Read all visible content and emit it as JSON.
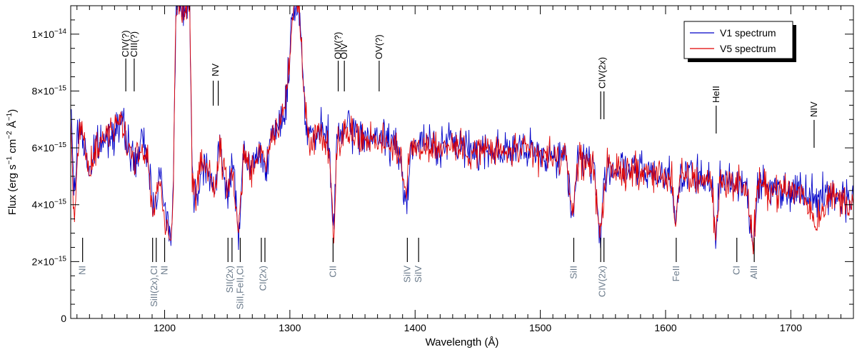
{
  "chart_data": {
    "type": "line",
    "title": "",
    "xlabel": "Wavelength (Å)",
    "ylabel_parts": {
      "a": "Flux (erg s",
      "b": "−1",
      "c": " cm",
      "d": "−2",
      "e": " Å",
      "f": "−1",
      "g": ")"
    },
    "xlim": [
      1125,
      1750
    ],
    "ylim": [
      0,
      1.1e-14
    ],
    "x_ticks": [
      {
        "value": 1200,
        "label": "1200"
      },
      {
        "value": 1300,
        "label": "1300"
      },
      {
        "value": 1400,
        "label": "1400"
      },
      {
        "value": 1500,
        "label": "1500"
      },
      {
        "value": 1600,
        "label": "1600"
      },
      {
        "value": 1700,
        "label": "1700"
      }
    ],
    "y_ticks": [
      {
        "value": 0,
        "mant": "0",
        "exp": ""
      },
      {
        "value": 2e-15,
        "mant": "2×10",
        "exp": "−15"
      },
      {
        "value": 4e-15,
        "mant": "4×10",
        "exp": "−15"
      },
      {
        "value": 6e-15,
        "mant": "6×10",
        "exp": "−15"
      },
      {
        "value": 8e-15,
        "mant": "8×10",
        "exp": "−15"
      },
      {
        "value": 1e-14,
        "mant": "1×10",
        "exp": "−14"
      }
    ],
    "legend_position": "top-right",
    "series": [
      {
        "name": "V1 spectrum",
        "color": "#0000c8",
        "anchors": [
          [
            1125,
            7.4e-15
          ],
          [
            1128,
            4.3e-15
          ],
          [
            1131,
            6.8e-15
          ],
          [
            1134,
            6.5e-15
          ],
          [
            1140,
            5.2e-15
          ],
          [
            1146,
            6.1e-15
          ],
          [
            1152,
            6.2e-15
          ],
          [
            1158,
            6.6e-15
          ],
          [
            1164,
            6.9e-15
          ],
          [
            1170,
            6.3e-15
          ],
          [
            1176,
            5.4e-15
          ],
          [
            1182,
            6.2e-15
          ],
          [
            1187,
            5.6e-15
          ],
          [
            1191,
            3.9e-15
          ],
          [
            1196,
            5.2e-15
          ],
          [
            1200,
            3.7e-15
          ],
          [
            1205,
            3.1e-15
          ],
          [
            1207,
            4.5e-15
          ],
          [
            1208,
            8e-15
          ],
          [
            1209,
            1.08e-14
          ],
          [
            1211,
            1.1e-14
          ],
          [
            1214,
            1.1e-14
          ],
          [
            1216,
            1.1e-14
          ],
          [
            1218,
            1.1e-14
          ],
          [
            1220,
            1.1e-14
          ],
          [
            1221,
            8e-15
          ],
          [
            1222,
            5e-15
          ],
          [
            1224,
            4.1e-15
          ],
          [
            1228,
            5e-15
          ],
          [
            1232,
            5.6e-15
          ],
          [
            1236,
            5.2e-15
          ],
          [
            1240,
            4.3e-15
          ],
          [
            1244,
            6e-15
          ],
          [
            1250,
            4.5e-15
          ],
          [
            1255,
            5.3e-15
          ],
          [
            1259,
            3e-15
          ],
          [
            1263,
            5.8e-15
          ],
          [
            1268,
            5.2e-15
          ],
          [
            1272,
            5.6e-15
          ],
          [
            1276,
            5.8e-15
          ],
          [
            1280,
            5.5e-15
          ],
          [
            1284,
            6e-15
          ],
          [
            1288,
            6.4e-15
          ],
          [
            1292,
            6.9e-15
          ],
          [
            1296,
            7.3e-15
          ],
          [
            1299,
            8.5e-15
          ],
          [
            1301,
            1.02e-14
          ],
          [
            1303,
            1.1e-14
          ],
          [
            1307,
            1.1e-14
          ],
          [
            1309,
            1e-14
          ],
          [
            1311,
            8e-15
          ],
          [
            1314,
            6.7e-15
          ],
          [
            1320,
            6.3e-15
          ],
          [
            1326,
            6.6e-15
          ],
          [
            1331,
            6.2e-15
          ],
          [
            1335,
            3.1e-15
          ],
          [
            1338,
            6.5e-15
          ],
          [
            1344,
            6.6e-15
          ],
          [
            1350,
            6.6e-15
          ],
          [
            1356,
            6.4e-15
          ],
          [
            1362,
            6.5e-15
          ],
          [
            1368,
            6.2e-15
          ],
          [
            1374,
            6.4e-15
          ],
          [
            1380,
            6.2e-15
          ],
          [
            1386,
            6e-15
          ],
          [
            1393,
            4e-15
          ],
          [
            1396,
            6e-15
          ],
          [
            1402,
            6.1e-15
          ],
          [
            1410,
            6.2e-15
          ],
          [
            1420,
            6e-15
          ],
          [
            1430,
            6.2e-15
          ],
          [
            1440,
            6e-15
          ],
          [
            1450,
            5.9e-15
          ],
          [
            1460,
            6e-15
          ],
          [
            1470,
            5.9e-15
          ],
          [
            1480,
            6e-15
          ],
          [
            1490,
            5.8e-15
          ],
          [
            1500,
            5.8e-15
          ],
          [
            1510,
            5.7e-15
          ],
          [
            1520,
            5.7e-15
          ],
          [
            1526,
            3.6e-15
          ],
          [
            1530,
            5.7e-15
          ],
          [
            1536,
            5.6e-15
          ],
          [
            1542,
            5.5e-15
          ],
          [
            1548,
            2.8e-15
          ],
          [
            1550,
            4e-15
          ],
          [
            1553,
            5.3e-15
          ],
          [
            1560,
            5.3e-15
          ],
          [
            1570,
            5.2e-15
          ],
          [
            1580,
            5.2e-15
          ],
          [
            1590,
            5.1e-15
          ],
          [
            1600,
            5e-15
          ],
          [
            1605,
            5.1e-15
          ],
          [
            1608,
            3.3e-15
          ],
          [
            1612,
            5e-15
          ],
          [
            1620,
            5e-15
          ],
          [
            1630,
            4.9e-15
          ],
          [
            1637,
            4.9e-15
          ],
          [
            1640,
            2.5e-15
          ],
          [
            1643,
            4.8e-15
          ],
          [
            1650,
            4.9e-15
          ],
          [
            1657,
            4.8e-15
          ],
          [
            1664,
            4.8e-15
          ],
          [
            1670,
            2.4e-15
          ],
          [
            1673,
            4.7e-15
          ],
          [
            1680,
            4.6e-15
          ],
          [
            1690,
            4.6e-15
          ],
          [
            1700,
            4.5e-15
          ],
          [
            1710,
            4.5e-15
          ],
          [
            1720,
            4.4e-15
          ],
          [
            1730,
            4.3e-15
          ],
          [
            1740,
            4.3e-15
          ],
          [
            1750,
            4.2e-15
          ]
        ],
        "noise": 3.4e-16,
        "seed": 7
      },
      {
        "name": "V5 spectrum",
        "color": "#e00000",
        "anchors": [
          [
            1125,
            7e-15
          ],
          [
            1128,
            3.3e-15
          ],
          [
            1131,
            5.8e-15
          ],
          [
            1134,
            6.8e-15
          ],
          [
            1140,
            5e-15
          ],
          [
            1146,
            6e-15
          ],
          [
            1152,
            6.4e-15
          ],
          [
            1158,
            6.8e-15
          ],
          [
            1164,
            7e-15
          ],
          [
            1170,
            6.2e-15
          ],
          [
            1176,
            5.6e-15
          ],
          [
            1182,
            6e-15
          ],
          [
            1187,
            5.5e-15
          ],
          [
            1191,
            3.6e-15
          ],
          [
            1196,
            5e-15
          ],
          [
            1200,
            3.5e-15
          ],
          [
            1205,
            2.9e-15
          ],
          [
            1207,
            4.3e-15
          ],
          [
            1208,
            8e-15
          ],
          [
            1209,
            1.08e-14
          ],
          [
            1211,
            1.1e-14
          ],
          [
            1214,
            1.1e-14
          ],
          [
            1216,
            1.1e-14
          ],
          [
            1218,
            1.1e-14
          ],
          [
            1220,
            1.1e-14
          ],
          [
            1221,
            8e-15
          ],
          [
            1222,
            5e-15
          ],
          [
            1224,
            4e-15
          ],
          [
            1228,
            5.1e-15
          ],
          [
            1232,
            5.5e-15
          ],
          [
            1236,
            5.3e-15
          ],
          [
            1240,
            4.5e-15
          ],
          [
            1244,
            5.9e-15
          ],
          [
            1250,
            4.6e-15
          ],
          [
            1255,
            5.2e-15
          ],
          [
            1259,
            2.7e-15
          ],
          [
            1263,
            5.7e-15
          ],
          [
            1268,
            5.3e-15
          ],
          [
            1272,
            5.5e-15
          ],
          [
            1276,
            5.9e-15
          ],
          [
            1280,
            5.6e-15
          ],
          [
            1284,
            6.1e-15
          ],
          [
            1288,
            6.5e-15
          ],
          [
            1292,
            6.8e-15
          ],
          [
            1296,
            7.4e-15
          ],
          [
            1299,
            8.6e-15
          ],
          [
            1301,
            1.03e-14
          ],
          [
            1303,
            1.1e-14
          ],
          [
            1307,
            1.1e-14
          ],
          [
            1309,
            1e-14
          ],
          [
            1311,
            8e-15
          ],
          [
            1314,
            6.6e-15
          ],
          [
            1320,
            6.4e-15
          ],
          [
            1326,
            6.5e-15
          ],
          [
            1331,
            6.1e-15
          ],
          [
            1335,
            2.9e-15
          ],
          [
            1338,
            6.4e-15
          ],
          [
            1344,
            6.5e-15
          ],
          [
            1350,
            6.5e-15
          ],
          [
            1356,
            6.3e-15
          ],
          [
            1362,
            6.4e-15
          ],
          [
            1368,
            6.3e-15
          ],
          [
            1374,
            6.3e-15
          ],
          [
            1380,
            6.1e-15
          ],
          [
            1386,
            6.1e-15
          ],
          [
            1393,
            4.2e-15
          ],
          [
            1396,
            6.1e-15
          ],
          [
            1402,
            6e-15
          ],
          [
            1410,
            6.1e-15
          ],
          [
            1420,
            6e-15
          ],
          [
            1430,
            6.1e-15
          ],
          [
            1440,
            5.9e-15
          ],
          [
            1450,
            5.9e-15
          ],
          [
            1460,
            5.9e-15
          ],
          [
            1470,
            5.8e-15
          ],
          [
            1480,
            5.9e-15
          ],
          [
            1490,
            5.8e-15
          ],
          [
            1500,
            5.7e-15
          ],
          [
            1510,
            5.7e-15
          ],
          [
            1520,
            5.6e-15
          ],
          [
            1526,
            3.8e-15
          ],
          [
            1530,
            5.6e-15
          ],
          [
            1536,
            5.5e-15
          ],
          [
            1542,
            5.4e-15
          ],
          [
            1548,
            3e-15
          ],
          [
            1550,
            4.1e-15
          ],
          [
            1553,
            5.2e-15
          ],
          [
            1560,
            5.2e-15
          ],
          [
            1570,
            5.2e-15
          ],
          [
            1580,
            5.1e-15
          ],
          [
            1590,
            5.1e-15
          ],
          [
            1600,
            5e-15
          ],
          [
            1605,
            5e-15
          ],
          [
            1608,
            3.1e-15
          ],
          [
            1612,
            5e-15
          ],
          [
            1620,
            4.9e-15
          ],
          [
            1630,
            4.9e-15
          ],
          [
            1637,
            4.8e-15
          ],
          [
            1640,
            2.6e-15
          ],
          [
            1643,
            4.8e-15
          ],
          [
            1650,
            4.8e-15
          ],
          [
            1657,
            4.7e-15
          ],
          [
            1664,
            4.7e-15
          ],
          [
            1670,
            2.6e-15
          ],
          [
            1673,
            4.6e-15
          ],
          [
            1680,
            4.6e-15
          ],
          [
            1690,
            4.5e-15
          ],
          [
            1700,
            4.5e-15
          ],
          [
            1710,
            4.4e-15
          ],
          [
            1720,
            3.4e-15
          ],
          [
            1730,
            4.3e-15
          ],
          [
            1740,
            4.2e-15
          ],
          [
            1750,
            4.1e-15
          ]
        ],
        "noise": 3e-16,
        "seed": 23
      }
    ],
    "emission_lines": [
      {
        "label": "CIV(?)",
        "x": [
          1169
        ]
      },
      {
        "label": "CIII(?)",
        "x": [
          1175.7
        ]
      },
      {
        "label": "NV",
        "x": [
          1238.8,
          1242.8
        ]
      },
      {
        "label": "OIV(?)",
        "x": [
          1338.6
        ]
      },
      {
        "label": "OIV",
        "x": [
          1343.5
        ]
      },
      {
        "label": "OV(?)",
        "x": [
          1371.3
        ]
      },
      {
        "label": "CIV(2x)",
        "x": [
          1548.2,
          1550.8
        ]
      },
      {
        "label": "HeII",
        "x": [
          1640.4
        ]
      },
      {
        "label": "NIV",
        "x": [
          1718.6
        ]
      }
    ],
    "absorption_lines": [
      {
        "label": "NI",
        "x": [
          1134.5
        ]
      },
      {
        "label": "SiII(2x),CI",
        "x": [
          1190.4,
          1193.3
        ]
      },
      {
        "label": "NI",
        "x": [
          1200
        ]
      },
      {
        "label": "SII(2x)",
        "x": [
          1250.6,
          1253.8
        ]
      },
      {
        "label": "SiII,FeII,CI",
        "x": [
          1260.4
        ]
      },
      {
        "label": "CI(2x)",
        "x": [
          1277.2,
          1280.1
        ]
      },
      {
        "label": "CII",
        "x": [
          1334.5
        ]
      },
      {
        "label": "SiIV",
        "x": [
          1393.8
        ]
      },
      {
        "label": "SiIV",
        "x": [
          1402.8
        ]
      },
      {
        "label": "SiII",
        "x": [
          1526.7
        ]
      },
      {
        "label": "CIV(2x)",
        "x": [
          1548.2,
          1550.8
        ]
      },
      {
        "label": "FeII",
        "x": [
          1608.5
        ]
      },
      {
        "label": "CI",
        "x": [
          1656.9
        ]
      },
      {
        "label": "AlII",
        "x": [
          1670.8
        ]
      }
    ]
  }
}
